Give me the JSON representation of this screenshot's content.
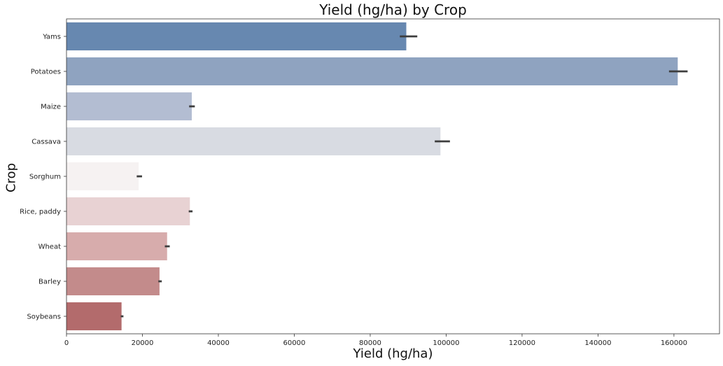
{
  "chart_data": {
    "type": "bar",
    "orientation": "horizontal",
    "title": "Yield (hg/ha) by Crop",
    "xlabel": "Yield (hg/ha)",
    "ylabel": "Crop",
    "categories": [
      "Yams",
      "Potatoes",
      "Maize",
      "Cassava",
      "Sorghum",
      "Rice, paddy",
      "Wheat",
      "Barley",
      "Soybeans"
    ],
    "values": [
      89500,
      161000,
      33000,
      98500,
      19000,
      32500,
      26500,
      24500,
      14500
    ],
    "error_low": [
      87800,
      158700,
      32300,
      97000,
      18500,
      32200,
      25900,
      24200,
      14300
    ],
    "error_high": [
      92400,
      163600,
      33800,
      101000,
      19900,
      33200,
      27200,
      25100,
      15000
    ],
    "colors": [
      "#6788b0",
      "#8fa3c0",
      "#b3bdd2",
      "#d8dbe2",
      "#f6f2f2",
      "#e8d2d3",
      "#d7acac",
      "#c38b8b",
      "#b36b6c"
    ],
    "xlim": [
      0,
      172000
    ],
    "xticks": [
      "0",
      "20000",
      "40000",
      "60000",
      "80000",
      "100000",
      "120000",
      "140000",
      "160000"
    ],
    "grid": false,
    "legend": "none"
  }
}
